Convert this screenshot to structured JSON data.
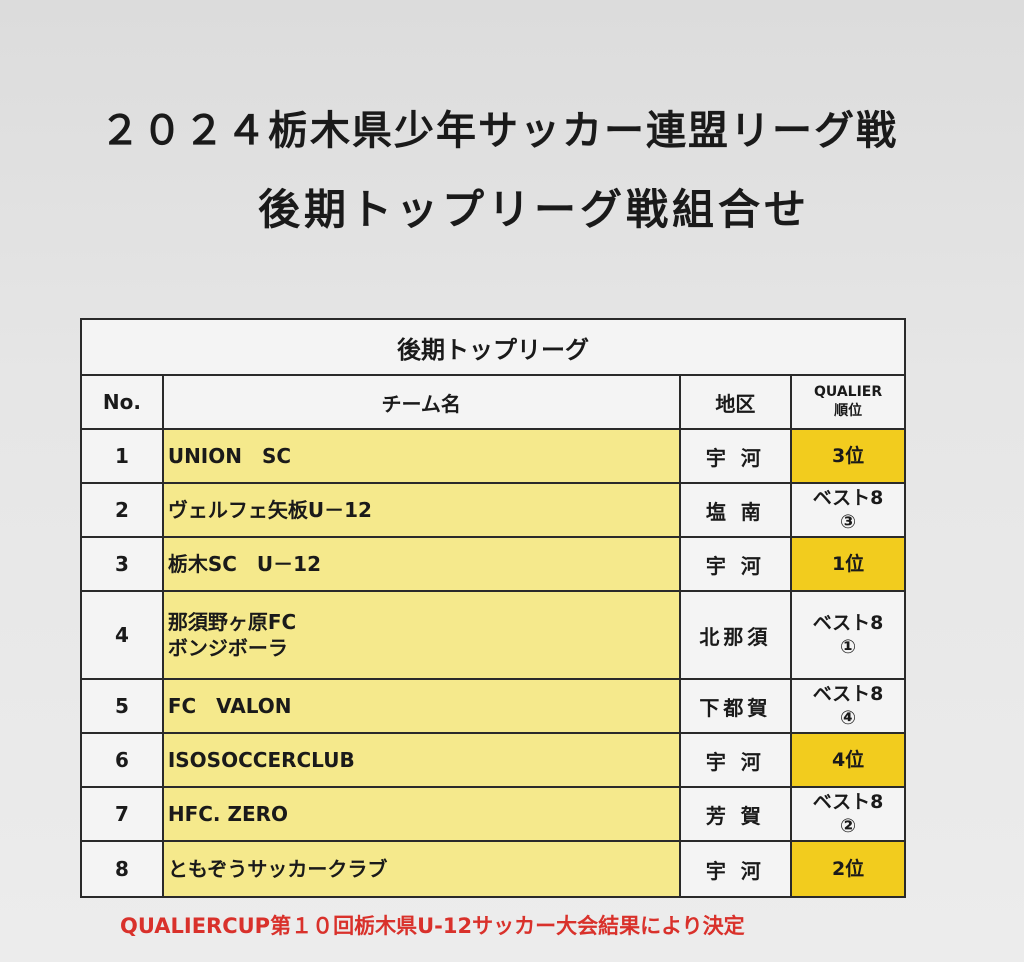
{
  "title_line1": "２０２４栃木県少年サッカー連盟リーグ戦",
  "title_line2": "後期トップリーグ戦組合せ",
  "table": {
    "caption": "後期トップリーグ",
    "headers": {
      "no": "No.",
      "team": "チーム名",
      "area": "地区",
      "rank_line1": "QUALIER",
      "rank_line2": "順位"
    },
    "rows": [
      {
        "no": "1",
        "team_line1": "UNION　SC",
        "team_line2": "",
        "area": "宇 河",
        "rank_line1": "3位",
        "rank_line2": "",
        "highlight": true
      },
      {
        "no": "2",
        "team_line1": "ヴェルフェ矢板U－12",
        "team_line2": "",
        "area": "塩 南",
        "rank_line1": "ベスト8",
        "rank_line2": "③",
        "highlight": false
      },
      {
        "no": "3",
        "team_line1": "栃木SC　U－12",
        "team_line2": "",
        "area": "宇 河",
        "rank_line1": "1位",
        "rank_line2": "",
        "highlight": true
      },
      {
        "no": "4",
        "team_line1": "那須野ヶ原FC",
        "team_line2": "ボンジボーラ",
        "area": "北那須",
        "rank_line1": "ベスト8",
        "rank_line2": "①",
        "highlight": false
      },
      {
        "no": "5",
        "team_line1": "FC　VALON",
        "team_line2": "",
        "area": "下都賀",
        "rank_line1": "ベスト8",
        "rank_line2": "④",
        "highlight": false
      },
      {
        "no": "6",
        "team_line1": "ISOSOCCERCLUB",
        "team_line2": "",
        "area": "宇 河",
        "rank_line1": "4位",
        "rank_line2": "",
        "highlight": true
      },
      {
        "no": "7",
        "team_line1": "HFC. ZERO",
        "team_line2": "",
        "area": "芳 賀",
        "rank_line1": "ベスト8",
        "rank_line2": "②",
        "highlight": false
      },
      {
        "no": "8",
        "team_line1": "ともぞうサッカークラブ",
        "team_line2": "",
        "area": "宇 河",
        "rank_line1": "2位",
        "rank_line2": "",
        "highlight": true
      }
    ]
  },
  "footnote": "QUALIERCUP第１０回栃木県U-12サッカー大会結果により決定",
  "colors": {
    "team_cell": "#f5e98c",
    "rank_highlight": "#f2cc1e",
    "footnote": "#d9312b"
  }
}
